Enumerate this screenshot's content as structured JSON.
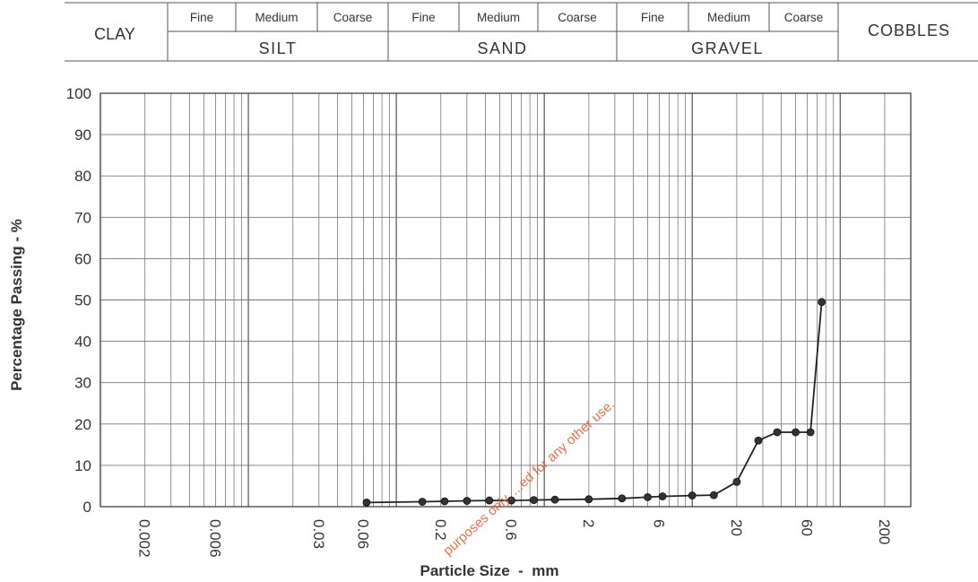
{
  "legend": {
    "clay": "CLAY",
    "silt": {
      "label": "SILT",
      "fine": "Fine",
      "medium": "Medium",
      "coarse": "Coarse"
    },
    "sand": {
      "label": "SAND",
      "fine": "Fine",
      "medium": "Medium",
      "coarse": "Coarse"
    },
    "gravel": {
      "label": "GRAVEL",
      "fine": "Fine",
      "medium": "Medium",
      "coarse": "Coarse"
    },
    "cobbles": "COBBLES"
  },
  "watermark": "purposes only. ...ed for any other use.",
  "chart_data": {
    "type": "line",
    "title": "",
    "xlabel": "Particle Size  -  mm",
    "ylabel": "Percentage Passing  -  %",
    "x_scale": "log",
    "xlim": [
      0.001,
      300
    ],
    "ylim": [
      0,
      100
    ],
    "x_tick_labels": [
      "0.002",
      "0.006",
      "0.03",
      "0.06",
      "0.2",
      "0.6",
      "2",
      "6",
      "20",
      "60",
      "200"
    ],
    "x_ticks": [
      0.002,
      0.006,
      0.03,
      0.06,
      0.2,
      0.6,
      2,
      6,
      20,
      60,
      200
    ],
    "y_ticks": [
      0,
      10,
      20,
      30,
      40,
      50,
      60,
      70,
      80,
      90,
      100
    ],
    "grid": true,
    "series": [
      {
        "x": [
          0.063,
          0.15,
          0.212,
          0.3,
          0.425,
          0.6,
          0.85,
          1.18,
          2,
          3.35,
          5,
          6.3,
          10,
          14,
          20,
          28,
          37.5,
          50,
          63,
          75
        ],
        "y": [
          1,
          1.2,
          1.3,
          1.4,
          1.5,
          1.5,
          1.6,
          1.7,
          1.8,
          2,
          2.3,
          2.5,
          2.7,
          2.8,
          6,
          16,
          18,
          18,
          18,
          49.5
        ]
      }
    ]
  }
}
